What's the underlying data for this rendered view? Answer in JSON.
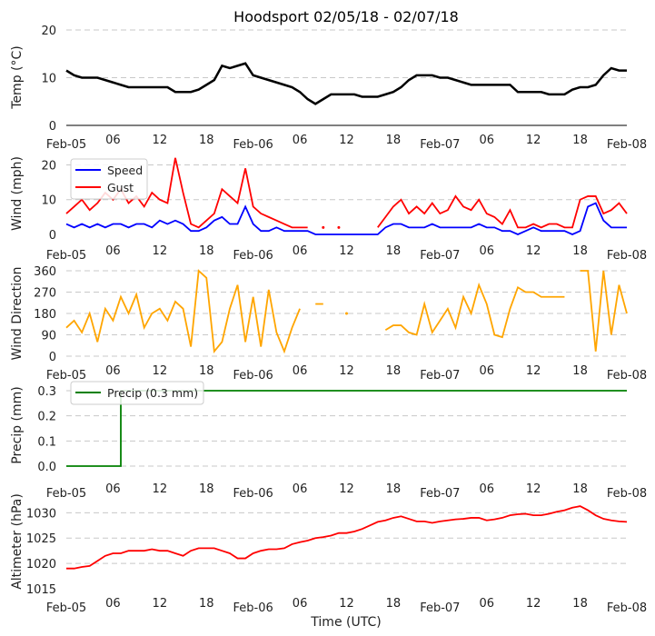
{
  "chart_data": [
    {
      "type": "line",
      "title": "Hoodsport 02/05/18 - 02/07/18",
      "ylabel": "Temp ($^\\circ$C)",
      "ylabel_display": "Temp (°C)",
      "ylim": [
        0,
        20
      ],
      "yticks": [
        "0",
        "10",
        "20"
      ],
      "x_hours_step": 1,
      "series": [
        {
          "name": "Temp",
          "color": "#000000",
          "values": [
            11.5,
            10.5,
            10,
            10,
            10,
            9.5,
            9,
            8.5,
            8,
            8,
            8,
            8,
            8,
            8,
            7,
            7,
            7,
            7.5,
            8.5,
            9.5,
            12.5,
            12,
            12.5,
            13,
            10.5,
            10,
            9.5,
            9,
            8.5,
            8,
            7,
            5.5,
            4.5,
            5.5,
            6.5,
            6.5,
            6.5,
            6.5,
            6,
            6,
            6,
            6.5,
            7,
            8,
            9.5,
            10.5,
            10.5,
            10.5,
            10,
            10,
            9.5,
            9,
            8.5,
            8.5,
            8.5,
            8.5,
            8.5,
            8.5,
            7,
            7,
            7,
            7,
            6.5,
            6.5,
            6.5,
            7.5,
            8,
            8,
            8.5,
            10.5,
            12,
            11.5,
            11.5
          ]
        }
      ]
    },
    {
      "type": "line",
      "ylabel": "Wind (mph)",
      "ylim": [
        0,
        23
      ],
      "yticks": [
        "0",
        "10",
        "20"
      ],
      "legend": "top-left",
      "series": [
        {
          "name": "Speed",
          "color": "#0000ff",
          "values": [
            3,
            2,
            3,
            2,
            3,
            2,
            3,
            3,
            2,
            3,
            3,
            2,
            4,
            3,
            4,
            3,
            1,
            1,
            2,
            4,
            5,
            3,
            3,
            8,
            3,
            1,
            1,
            2,
            1,
            1,
            1,
            1,
            0,
            0,
            0,
            0,
            0,
            0,
            0,
            0,
            0,
            2,
            3,
            3,
            2,
            2,
            2,
            3,
            2,
            2,
            2,
            2,
            2,
            3,
            2,
            2,
            1,
            1,
            0,
            1,
            2,
            1,
            1,
            1,
            1,
            0,
            1,
            8,
            9,
            4,
            2,
            2,
            2
          ]
        },
        {
          "name": "Gust",
          "color": "#ff0000",
          "values": [
            6,
            8,
            10,
            7,
            9,
            12,
            10,
            13,
            9,
            11,
            8,
            12,
            10,
            9,
            22,
            12,
            3,
            2,
            4,
            6,
            13,
            11,
            9,
            19,
            8,
            6,
            5,
            4,
            3,
            2,
            2,
            2,
            null,
            2,
            null,
            2,
            null,
            null,
            null,
            null,
            2,
            5,
            8,
            10,
            6,
            8,
            6,
            9,
            6,
            7,
            11,
            8,
            7,
            10,
            6,
            5,
            3,
            7,
            2,
            2,
            3,
            2,
            3,
            3,
            2,
            2,
            10,
            11,
            11,
            6,
            7,
            9,
            6
          ]
        }
      ]
    },
    {
      "type": "line",
      "ylabel": "Wind Direction",
      "ylim": [
        0,
        360
      ],
      "yticks": [
        "0",
        "90",
        "180",
        "270",
        "360"
      ],
      "series": [
        {
          "name": "Direction",
          "color": "#ffa500",
          "values": [
            120,
            150,
            100,
            180,
            60,
            200,
            150,
            250,
            180,
            260,
            120,
            180,
            200,
            150,
            230,
            200,
            40,
            360,
            330,
            20,
            60,
            200,
            300,
            60,
            250,
            40,
            280,
            100,
            20,
            120,
            200,
            null,
            220,
            220,
            null,
            null,
            180,
            null,
            null,
            null,
            null,
            110,
            130,
            130,
            100,
            90,
            220,
            100,
            150,
            200,
            120,
            250,
            180,
            300,
            220,
            90,
            80,
            200,
            290,
            270,
            270,
            250,
            250,
            250,
            250,
            null,
            360,
            360,
            20,
            360,
            90,
            300,
            180
          ]
        }
      ]
    },
    {
      "type": "line",
      "ylabel": "Precip (mm)",
      "ylim": [
        0,
        0.3
      ],
      "yticks": [
        "0.0",
        "0.1",
        "0.2",
        "0.3"
      ],
      "legend": "top-left",
      "series": [
        {
          "name": "Precip (0.3 mm)",
          "color": "#008000",
          "values": [
            0,
            0,
            0,
            0,
            0,
            0,
            0,
            0.3,
            0.3,
            0.3,
            0.3,
            0.3,
            0.3,
            0.3,
            0.3,
            0.3,
            0.3,
            0.3,
            0.3,
            0.3,
            0.3,
            0.3,
            0.3,
            0.3,
            0.3,
            0.3,
            0.3,
            0.3,
            0.3,
            0.3,
            0.3,
            0.3,
            0.3,
            0.3,
            0.3,
            0.3,
            0.3,
            0.3,
            0.3,
            0.3,
            0.3,
            0.3,
            0.3,
            0.3,
            0.3,
            0.3,
            0.3,
            0.3,
            0.3,
            0.3,
            0.3,
            0.3,
            0.3,
            0.3,
            0.3,
            0.3,
            0.3,
            0.3,
            0.3,
            0.3,
            0.3,
            0.3,
            0.3,
            0.3,
            0.3,
            0.3,
            0.3,
            0.3,
            0.3,
            0.3,
            0.3,
            0.3,
            0.3
          ]
        }
      ]
    },
    {
      "type": "line",
      "ylabel": "Altimeter (hPa)",
      "xlabel": "Time (UTC)",
      "ylim": [
        1015,
        1031.5
      ],
      "yticks": [
        "1015",
        "1020",
        "1025",
        "1030"
      ],
      "series": [
        {
          "name": "Altimeter",
          "color": "#ff0000",
          "values": [
            1019,
            1019,
            1019.3,
            1019.5,
            1020.5,
            1021.5,
            1022,
            1022,
            1022.5,
            1022.5,
            1022.5,
            1022.8,
            1022.5,
            1022.5,
            1022,
            1021.5,
            1022.5,
            1023,
            1023,
            1023,
            1022.5,
            1022,
            1021,
            1021,
            1022,
            1022.5,
            1022.8,
            1022.8,
            1023,
            1023.8,
            1024.2,
            1024.5,
            1025,
            1025.2,
            1025.5,
            1026,
            1026,
            1026.3,
            1026.8,
            1027.5,
            1028.2,
            1028.5,
            1029,
            1029.3,
            1028.8,
            1028.3,
            1028.3,
            1028,
            1028.3,
            1028.5,
            1028.7,
            1028.8,
            1029,
            1029,
            1028.5,
            1028.7,
            1029,
            1029.5,
            1029.7,
            1029.8,
            1029.5,
            1029.5,
            1029.8,
            1030.2,
            1030.5,
            1031,
            1031.3,
            1030.5,
            1029.5,
            1028.8,
            1028.5,
            1028.3,
            1028.2
          ]
        }
      ]
    }
  ],
  "xticks": [
    "Feb-05",
    "06",
    "12",
    "18",
    "Feb-06",
    "06",
    "12",
    "18",
    "Feb-07",
    "06",
    "12",
    "18",
    "Feb-08"
  ]
}
